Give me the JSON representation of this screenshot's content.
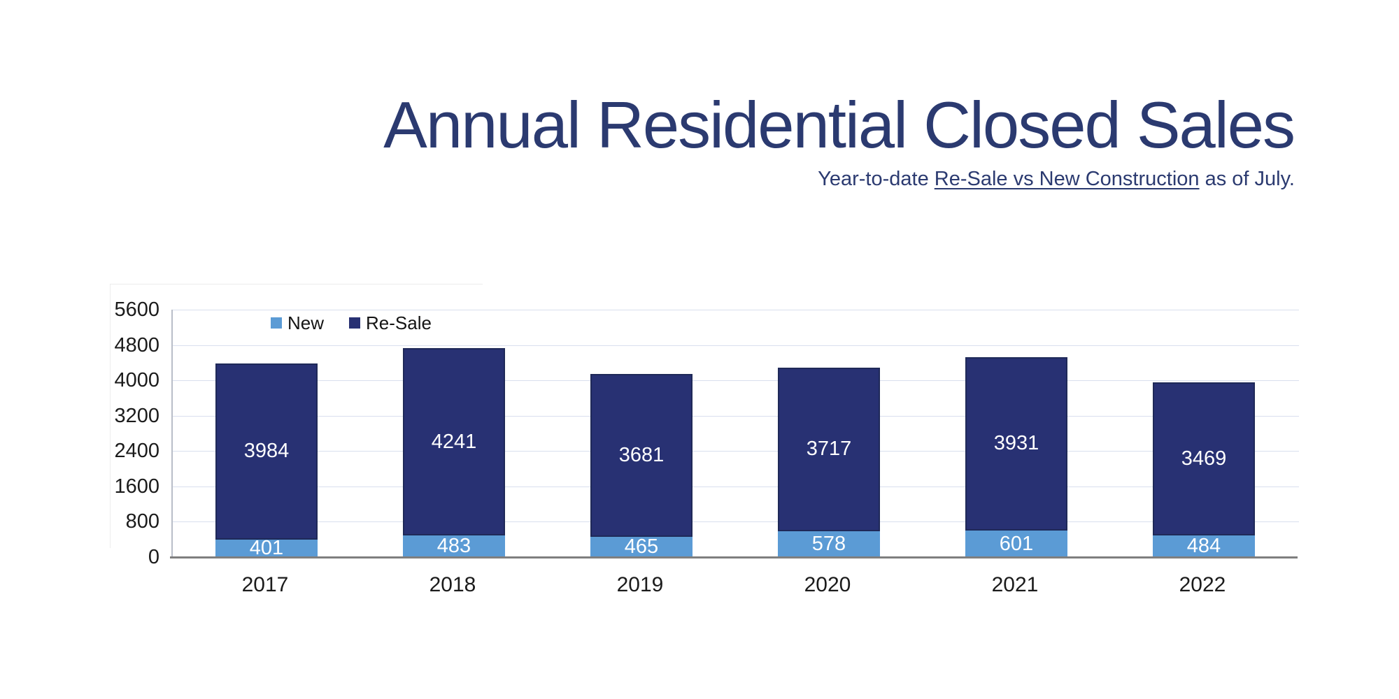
{
  "header": {
    "title": "Annual Residential Closed Sales",
    "subtitle_prefix": "Year-to-date ",
    "subtitle_underlined": "Re-Sale vs New Construction",
    "subtitle_suffix": " as of July.",
    "text_color": "#2B3A70"
  },
  "chart_data": {
    "type": "bar",
    "stacked": true,
    "title": "Annual Residential Closed Sales",
    "subtitle": "Year-to-date Re-Sale vs New Construction as of July.",
    "categories": [
      "2017",
      "2018",
      "2019",
      "2020",
      "2021",
      "2022"
    ],
    "series": [
      {
        "name": "New",
        "color": "#5B9BD5",
        "values": [
          401,
          483,
          465,
          578,
          601,
          484
        ]
      },
      {
        "name": "Re-Sale",
        "color": "#283173",
        "values": [
          3984,
          4241,
          3681,
          3717,
          3931,
          3469
        ]
      }
    ],
    "ylim": [
      0,
      5600
    ],
    "yticks": [
      0,
      800,
      1600,
      2400,
      3200,
      4000,
      4800,
      5600
    ],
    "grid": "horizontal",
    "legend_position": "top-left-inside",
    "bar_label_color": "#ffffff",
    "gridline_color": "#D9DFEE",
    "y_axis_line_color": "#B9BEC8",
    "x_axis_line_color": "#7F7F7F",
    "tick_label_color": "#1B1B1B"
  }
}
